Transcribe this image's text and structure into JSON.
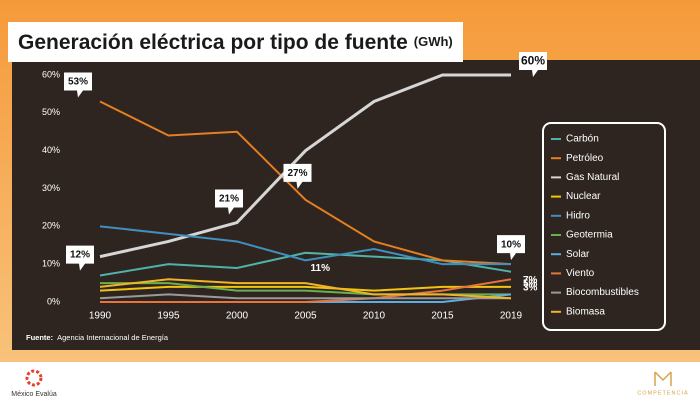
{
  "chart_data": {
    "type": "line",
    "title": "Generación eléctrica por tipo de fuente",
    "unit": "(GWh)",
    "categories": [
      "1990",
      "1995",
      "2000",
      "2005",
      "2010",
      "2015",
      "2019"
    ],
    "ylim": [
      0,
      60
    ],
    "yticks": [
      {
        "value": 0,
        "label": "0%"
      },
      {
        "value": 10,
        "label": "10%"
      },
      {
        "value": 20,
        "label": "20%"
      },
      {
        "value": 30,
        "label": "30%"
      },
      {
        "value": 40,
        "label": "40%"
      },
      {
        "value": 50,
        "label": "50%"
      },
      {
        "value": 60,
        "label": "60%"
      }
    ],
    "series": [
      {
        "name": "Carbón",
        "color": "#4fb3a9",
        "values": [
          7,
          10,
          9,
          13,
          12,
          11,
          8
        ]
      },
      {
        "name": "Petróleo",
        "color": "#e67e22",
        "values": [
          53,
          44,
          45,
          27,
          16,
          11,
          10
        ]
      },
      {
        "name": "Gas Natural",
        "color": "#d6d6d6",
        "values": [
          12,
          16,
          21,
          40,
          53,
          60,
          60
        ]
      },
      {
        "name": "Nuclear",
        "color": "#f1c40f",
        "values": [
          3,
          4,
          4,
          4,
          3,
          4,
          4
        ]
      },
      {
        "name": "Hidro",
        "color": "#3f8fbf",
        "values": [
          20,
          18,
          16,
          11,
          14,
          10,
          10
        ]
      },
      {
        "name": "Geotermia",
        "color": "#6ab04c",
        "values": [
          5,
          5,
          3,
          3,
          2,
          2,
          2
        ]
      },
      {
        "name": "Solar",
        "color": "#5dade2",
        "values": [
          0,
          0,
          0,
          0,
          0,
          0,
          2
        ]
      },
      {
        "name": "Viento",
        "color": "#e8743b",
        "values": [
          0,
          0,
          0,
          0,
          1,
          3,
          6
        ]
      },
      {
        "name": "Biocombustibles",
        "color": "#9a9a9a",
        "values": [
          1,
          2,
          1,
          1,
          1,
          1,
          1
        ]
      },
      {
        "name": "Biomasa",
        "color": "#f0b429",
        "values": [
          4,
          6,
          5,
          5,
          2,
          2,
          1
        ]
      }
    ],
    "annotations": [
      {
        "x": "1990",
        "y": 53,
        "label": "53%"
      },
      {
        "x": "1990",
        "y": 12,
        "label": "12%"
      },
      {
        "x": "2000",
        "y": 21,
        "label": "21%"
      },
      {
        "x": "2005",
        "y": 27,
        "label": "27%"
      },
      {
        "x": "2019",
        "y": 60,
        "label": "60%"
      },
      {
        "x": "2019",
        "y": 10,
        "label": "10%"
      },
      {
        "x": "2005",
        "y": 11,
        "label": "11%"
      },
      {
        "x": "2019",
        "y": 7,
        "label": "7%"
      },
      {
        "x": "2019",
        "y": 5,
        "label": "5%"
      },
      {
        "x": "2019",
        "y": 3,
        "label": "3%"
      }
    ],
    "source_label": "Fuente:",
    "source": "Agencia Internacional de Energía",
    "legend": "right",
    "grid": false
  },
  "footer": {
    "left_logo": "México Evalúa",
    "right_logo": "COMPETENCIA"
  }
}
